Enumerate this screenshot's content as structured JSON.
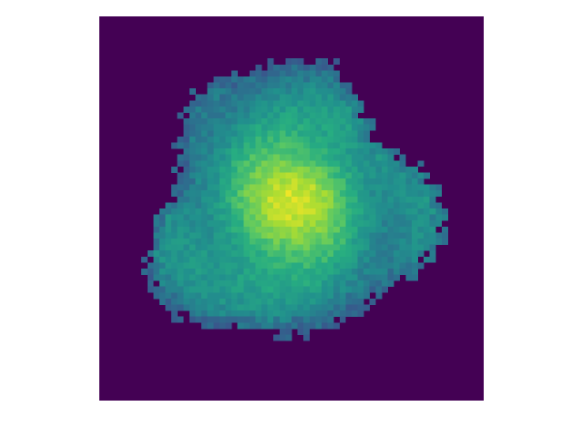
{
  "image": {
    "colormap": "viridis",
    "background_color": "#440154",
    "peak_color": "#f0e81f"
  }
}
